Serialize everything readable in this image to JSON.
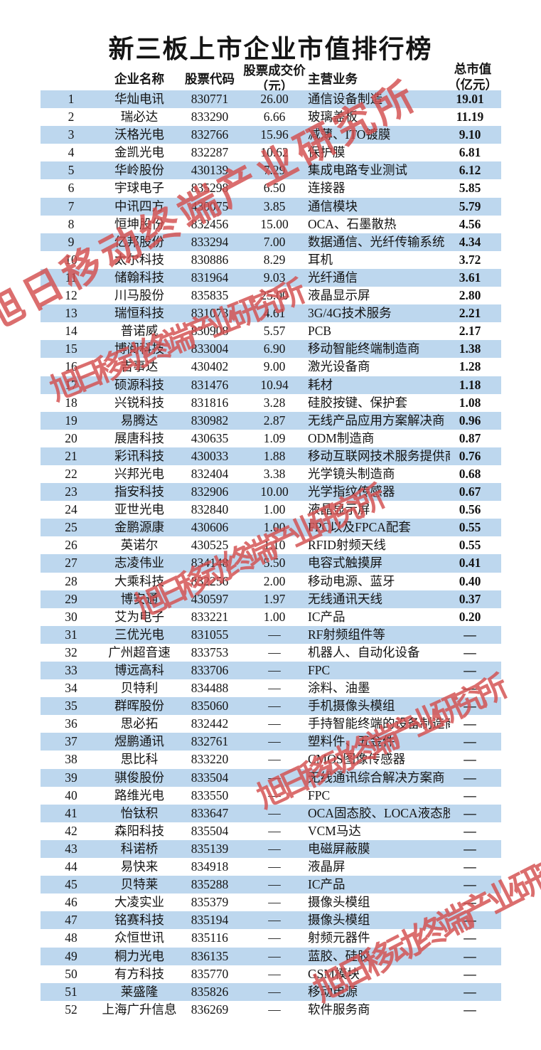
{
  "title": "新三板上市企业市值排行榜",
  "watermark": {
    "text": "旭日移动终端产业研究所"
  },
  "colors": {
    "row_alt_blue": "#BDD7EE",
    "watermark_red": "#D44F4F",
    "text": "#141414",
    "background": "#FFFFFF"
  },
  "table": {
    "headers": {
      "name": "企业名称",
      "code": "股票代码",
      "price_line1": "股票成交价",
      "price_line2": "（元）",
      "business": "主营业务",
      "mcap_line1": "总市值",
      "mcap_line2": "（亿元）"
    },
    "rows": [
      {
        "rank": "1",
        "name": "华灿电讯",
        "code": "830771",
        "price": "26.00",
        "business": "通信设备制造",
        "mcap": "19.01"
      },
      {
        "rank": "2",
        "name": "瑞必达",
        "code": "833290",
        "price": "6.66",
        "business": "玻璃盖板",
        "mcap": "11.19"
      },
      {
        "rank": "3",
        "name": "沃格光电",
        "code": "832766",
        "price": "15.96",
        "business": "减薄、ITO镀膜",
        "mcap": "9.10"
      },
      {
        "rank": "4",
        "name": "金凯光电",
        "code": "832287",
        "price": "10.62",
        "business": "保护膜",
        "mcap": "6.81"
      },
      {
        "rank": "5",
        "name": "华岭股份",
        "code": "430139",
        "price": "7.29",
        "business": "集成电路专业测试",
        "mcap": "6.12"
      },
      {
        "rank": "6",
        "name": "宇球电子",
        "code": "835298",
        "price": "6.50",
        "business": "连接器",
        "mcap": "5.85"
      },
      {
        "rank": "7",
        "name": "中讯四方",
        "code": "430075",
        "price": "3.85",
        "business": "通信模块",
        "mcap": "5.79"
      },
      {
        "rank": "8",
        "name": "恒坤股份",
        "code": "832456",
        "price": "15.00",
        "business": "OCA、石墨散热",
        "mcap": "4.56"
      },
      {
        "rank": "9",
        "name": "亿邦股份",
        "code": "833294",
        "price": "7.00",
        "business": "数据通信、光纤传输系统",
        "mcap": "4.34"
      },
      {
        "rank": "10",
        "name": "太尔科技",
        "code": "830886",
        "price": "8.29",
        "business": "耳机",
        "mcap": "3.72"
      },
      {
        "rank": "11",
        "name": "储翰科技",
        "code": "831964",
        "price": "9.03",
        "business": "光纤通信",
        "mcap": "3.61"
      },
      {
        "rank": "12",
        "name": "川马股份",
        "code": "835835",
        "price": "25.00",
        "business": "液晶显示屏",
        "mcap": "2.80"
      },
      {
        "rank": "13",
        "name": "瑞恒科技",
        "code": "831073",
        "price": "4.61",
        "business": "3G/4G技术服务",
        "mcap": "2.21"
      },
      {
        "rank": "14",
        "name": "普诺威",
        "code": "830908",
        "price": "5.57",
        "business": "PCB",
        "mcap": "2.17"
      },
      {
        "rank": "15",
        "name": "博阅科技",
        "code": "833004",
        "price": "6.90",
        "business": "移动智能终端制造商",
        "mcap": "1.38"
      },
      {
        "rank": "16",
        "name": "吉事达",
        "code": "430402",
        "price": "9.00",
        "business": "激光设备商",
        "mcap": "1.28"
      },
      {
        "rank": "17",
        "name": "硕源科技",
        "code": "831476",
        "price": "10.94",
        "business": "耗材",
        "mcap": "1.18"
      },
      {
        "rank": "18",
        "name": "兴锐科技",
        "code": "831816",
        "price": "3.28",
        "business": "硅胶按键、保护套",
        "mcap": "1.08"
      },
      {
        "rank": "19",
        "name": "易腾达",
        "code": "830982",
        "price": "2.87",
        "business": "无线产品应用方案解决商",
        "mcap": "0.96"
      },
      {
        "rank": "20",
        "name": "展唐科技",
        "code": "430635",
        "price": "1.09",
        "business": "ODM制造商",
        "mcap": "0.87"
      },
      {
        "rank": "21",
        "name": "彩讯科技",
        "code": "430033",
        "price": "1.88",
        "business": "移动互联网技术服务提供商",
        "mcap": "0.76"
      },
      {
        "rank": "22",
        "name": "兴邦光电",
        "code": "832404",
        "price": "3.38",
        "business": "光学镜头制造商",
        "mcap": "0.68"
      },
      {
        "rank": "23",
        "name": "指安科技",
        "code": "832906",
        "price": "10.00",
        "business": "光学指纹传感器",
        "mcap": "0.67"
      },
      {
        "rank": "24",
        "name": "亚世光电",
        "code": "832840",
        "price": "1.00",
        "business": "液晶显示屏",
        "mcap": "0.56"
      },
      {
        "rank": "25",
        "name": "金鹏源康",
        "code": "430606",
        "price": "1.00",
        "business": "FPC以及FPCA配套",
        "mcap": "0.55"
      },
      {
        "rank": "26",
        "name": "英诺尔",
        "code": "430525",
        "price": "1.10",
        "business": "RFID射频天线",
        "mcap": "0.55"
      },
      {
        "rank": "27",
        "name": "志凌伟业",
        "code": "834148",
        "price": "5.50",
        "business": "电容式触摸屏",
        "mcap": "0.41"
      },
      {
        "rank": "28",
        "name": "大乘科技",
        "code": "832256",
        "price": "2.00",
        "business": "移动电源、蓝牙",
        "mcap": "0.40"
      },
      {
        "rank": "29",
        "name": "博安通",
        "code": "430597",
        "price": "1.97",
        "business": "无线通讯天线",
        "mcap": "0.37"
      },
      {
        "rank": "30",
        "name": "艾为电子",
        "code": "833221",
        "price": "1.00",
        "business": "IC产品",
        "mcap": "0.20"
      },
      {
        "rank": "31",
        "name": "三优光电",
        "code": "831055",
        "price": "—",
        "business": "RF射频组件等",
        "mcap": "—"
      },
      {
        "rank": "32",
        "name": "广州超音速",
        "code": "833753",
        "price": "—",
        "business": "机器人、自动化设备",
        "mcap": "—"
      },
      {
        "rank": "33",
        "name": "博远高科",
        "code": "833706",
        "price": "—",
        "business": "FPC",
        "mcap": "—"
      },
      {
        "rank": "34",
        "name": "贝特利",
        "code": "834488",
        "price": "—",
        "business": "涂料、油墨",
        "mcap": "—"
      },
      {
        "rank": "35",
        "name": "群晖股份",
        "code": "835060",
        "price": "—",
        "business": "手机摄像头模组",
        "mcap": "—"
      },
      {
        "rank": "36",
        "name": "思必拓",
        "code": "832442",
        "price": "—",
        "business": "手持智能终端的设备制造商",
        "mcap": "—"
      },
      {
        "rank": "37",
        "name": "煜鹏通讯",
        "code": "832761",
        "price": "—",
        "business": "塑料件、五金件",
        "mcap": "—"
      },
      {
        "rank": "38",
        "name": "思比科",
        "code": "833220",
        "price": "—",
        "business": "CMOS图像传感器",
        "mcap": "—"
      },
      {
        "rank": "39",
        "name": "骐俊股份",
        "code": "833504",
        "price": "—",
        "business": "无线通讯综合解决方案商",
        "mcap": "—"
      },
      {
        "rank": "40",
        "name": "路维光电",
        "code": "833550",
        "price": "—",
        "business": "FPC",
        "mcap": "—"
      },
      {
        "rank": "41",
        "name": "怡钛积",
        "code": "833647",
        "price": "—",
        "business": "OCA固态胶、LOCA液态胶",
        "mcap": "—"
      },
      {
        "rank": "42",
        "name": "森阳科技",
        "code": "835504",
        "price": "—",
        "business": "VCM马达",
        "mcap": "—"
      },
      {
        "rank": "43",
        "name": "科诺桥",
        "code": "835139",
        "price": "—",
        "business": "电磁屏蔽膜",
        "mcap": "—"
      },
      {
        "rank": "44",
        "name": "易快来",
        "code": "834918",
        "price": "—",
        "business": "液晶屏",
        "mcap": "—"
      },
      {
        "rank": "45",
        "name": "贝特莱",
        "code": "835288",
        "price": "—",
        "business": "IC产品",
        "mcap": "—"
      },
      {
        "rank": "46",
        "name": "大凌实业",
        "code": "835379",
        "price": "—",
        "business": "摄像头模组",
        "mcap": "—"
      },
      {
        "rank": "47",
        "name": "铭赛科技",
        "code": "835194",
        "price": "—",
        "business": "摄像头模组",
        "mcap": "—"
      },
      {
        "rank": "48",
        "name": "众恒世讯",
        "code": "835116",
        "price": "—",
        "business": "射频元器件",
        "mcap": "—"
      },
      {
        "rank": "49",
        "name": "桐力光电",
        "code": "836135",
        "price": "—",
        "business": "蓝胶、硅胶",
        "mcap": "—"
      },
      {
        "rank": "50",
        "name": "有方科技",
        "code": "835770",
        "price": "—",
        "business": "GSM模块",
        "mcap": "—"
      },
      {
        "rank": "51",
        "name": "莱盛隆",
        "code": "835826",
        "price": "—",
        "business": "移动电源",
        "mcap": "—"
      },
      {
        "rank": "52",
        "name": "上海广升信息",
        "code": "836269",
        "price": "—",
        "business": "软件服务商",
        "mcap": "—"
      }
    ]
  }
}
